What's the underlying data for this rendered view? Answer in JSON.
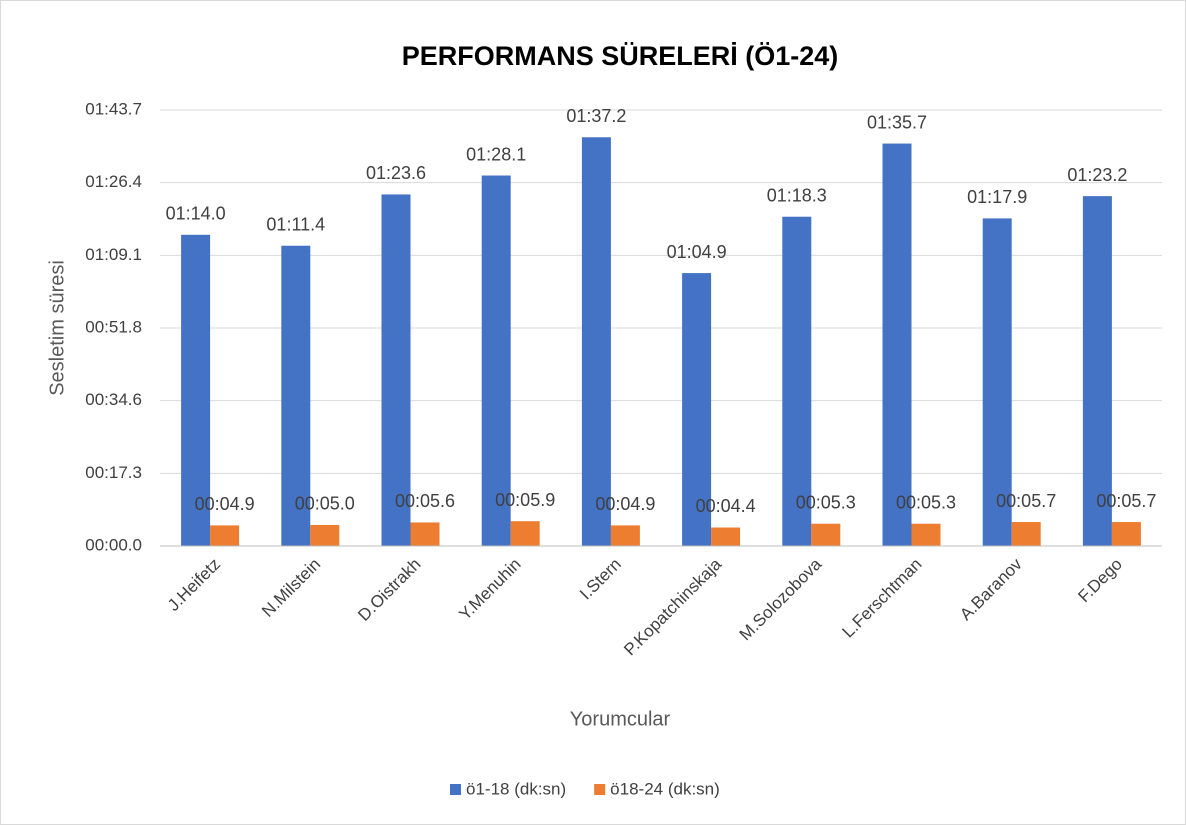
{
  "chart_data": {
    "type": "bar",
    "title": "PERFORMANS SÜRELERİ (Ö1-24)",
    "x_label": "Yorumcular",
    "y_label": "Sesletim süresi",
    "categories": [
      "J.Heifetz",
      "N.Milstein",
      "D.Oistrakh",
      "Y.Menuhin",
      "I.Stern",
      "P.Kopatchinskaja",
      "M.Solozobova",
      "L.Ferschtman",
      "A.Baranov",
      "F.Dego"
    ],
    "series": [
      {
        "name": "ö1-18 (dk:sn)",
        "color": "#4472c4",
        "values": [
          74.0,
          71.4,
          83.6,
          88.1,
          97.2,
          64.9,
          78.3,
          95.7,
          77.9,
          83.2
        ],
        "value_labels": [
          "01:14.0",
          "01:11.4",
          "01:23.6",
          "01:28.1",
          "01:37.2",
          "01:04.9",
          "01:18.3",
          "01:35.7",
          "01:17.9",
          "01:23.2"
        ]
      },
      {
        "name": "ö18-24 (dk:sn)",
        "color": "#ed7d31",
        "values": [
          4.9,
          5.0,
          5.6,
          5.9,
          4.9,
          4.4,
          5.3,
          5.3,
          5.7,
          5.7
        ],
        "value_labels": [
          "00:04.9",
          "00:05.0",
          "00:05.6",
          "00:05.9",
          "00:04.9",
          "00:04.4",
          "00:05.3",
          "00:05.3",
          "00:05.7",
          "00:05.7"
        ]
      }
    ],
    "ylim": [
      0,
      103.68
    ],
    "yticks": [
      {
        "value": 0,
        "label": "00:00.0"
      },
      {
        "value": 17.28,
        "label": "00:17.3"
      },
      {
        "value": 34.56,
        "label": "00:34.6"
      },
      {
        "value": 51.84,
        "label": "00:51.8"
      },
      {
        "value": 69.12,
        "label": "01:09.1"
      },
      {
        "value": 86.4,
        "label": "01:26.4"
      },
      {
        "value": 103.68,
        "label": "01:43.7"
      }
    ],
    "grid": true,
    "legend": "bottom"
  }
}
